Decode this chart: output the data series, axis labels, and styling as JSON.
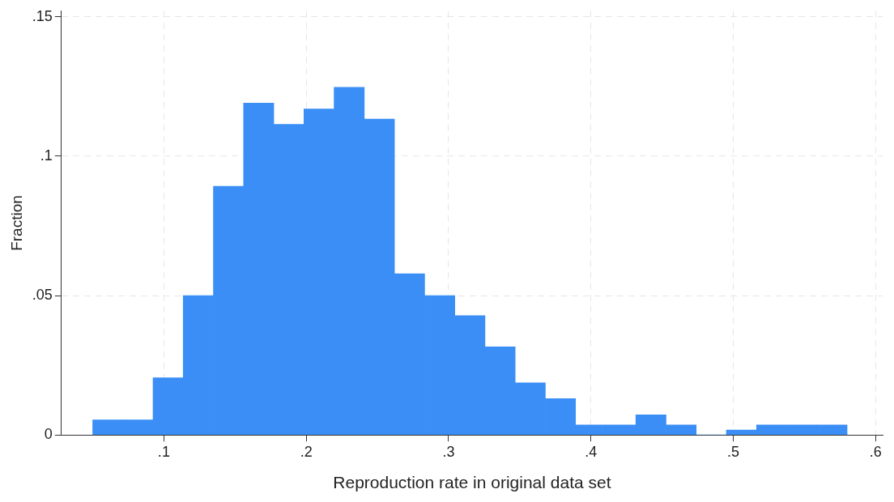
{
  "chart_data": {
    "type": "histogram",
    "xlabel": "Reproduction rate in original data set",
    "ylabel": "Fraction",
    "bins": [
      0.05,
      0.0712,
      0.0924,
      0.1136,
      0.1348,
      0.156,
      0.1772,
      0.1984,
      0.2196,
      0.2408,
      0.262,
      0.2832,
      0.3044,
      0.3256,
      0.3468,
      0.368,
      0.3892,
      0.4104,
      0.4316,
      0.4528,
      0.474,
      0.4952,
      0.5164,
      0.5376,
      0.5588,
      0.58
    ],
    "values": [
      0.0054,
      0.0054,
      0.0205,
      0.05,
      0.0892,
      0.119,
      0.1114,
      0.1169,
      0.1247,
      0.1133,
      0.0578,
      0.05,
      0.0428,
      0.0316,
      0.0187,
      0.013,
      0.0036,
      0.0036,
      0.0072,
      0.0036,
      0,
      0.0018,
      0.0036,
      0.0036,
      0.0036
    ],
    "color": "#3a8ef6",
    "xlim": [
      0.028,
      0.605
    ],
    "ylim": [
      0,
      0.152
    ],
    "xticks": [
      {
        "value": 0.1,
        "label": ".1"
      },
      {
        "value": 0.2,
        "label": ".2"
      },
      {
        "value": 0.3,
        "label": ".3"
      },
      {
        "value": 0.4,
        "label": ".4"
      },
      {
        "value": 0.5,
        "label": ".5"
      },
      {
        "value": 0.6,
        "label": ".6"
      }
    ],
    "yticks": [
      {
        "value": 0,
        "label": "0"
      },
      {
        "value": 0.05,
        "label": ".05"
      },
      {
        "value": 0.1,
        "label": ".1"
      },
      {
        "value": 0.15,
        "label": ".15"
      }
    ],
    "grid": true,
    "legend": false
  }
}
